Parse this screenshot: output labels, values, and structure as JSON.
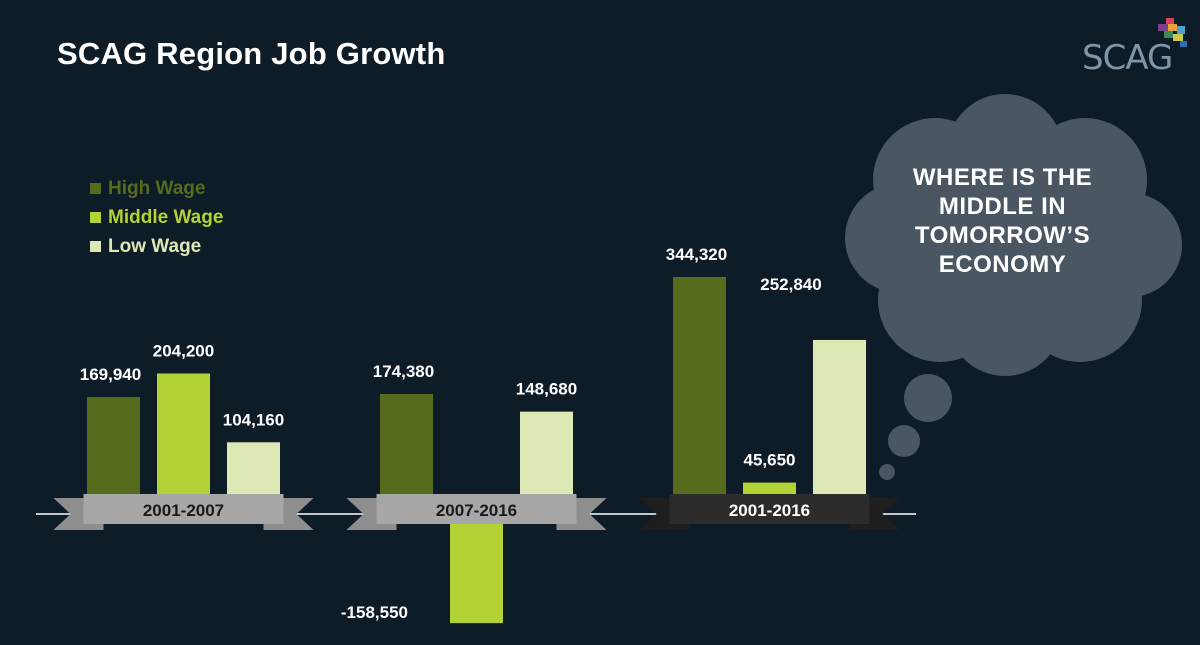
{
  "title": "SCAG Region Job Growth",
  "logo_text": "SCAG",
  "callout": {
    "lines": [
      "WHERE IS THE",
      "MIDDLE IN",
      "TOMORROW’S",
      "ECONOMY"
    ]
  },
  "colors": {
    "background": "#0e1c28",
    "high": "#566b1c",
    "middle": "#b2d235",
    "low": "#dde9b4",
    "cloud": "#4a5662",
    "ribbon_light": "#a7a7a7",
    "ribbon_dark": "#2c2c2c"
  },
  "chart_data": {
    "type": "bar",
    "title": "SCAG Region Job Growth",
    "categories": [
      "2001-2007",
      "2007-2016",
      "2001-2016"
    ],
    "series": [
      {
        "name": "High Wage",
        "values": [
          169940,
          174380,
          344320
        ],
        "labels": [
          "169,940",
          "174,380",
          "344,320"
        ]
      },
      {
        "name": "Middle Wage",
        "values": [
          204200,
          -158550,
          45650
        ],
        "labels": [
          "204,200",
          "-158,550",
          "45,650"
        ]
      },
      {
        "name": "Low Wage",
        "values": [
          104160,
          148680,
          252840
        ],
        "labels": [
          "104,160",
          "148,680",
          "252,840"
        ]
      }
    ],
    "legend": [
      "High Wage",
      "Middle Wage",
      "Low Wage"
    ],
    "legend_position": "top-left",
    "ylim": [
      -158550,
      344320
    ],
    "grid": false
  }
}
